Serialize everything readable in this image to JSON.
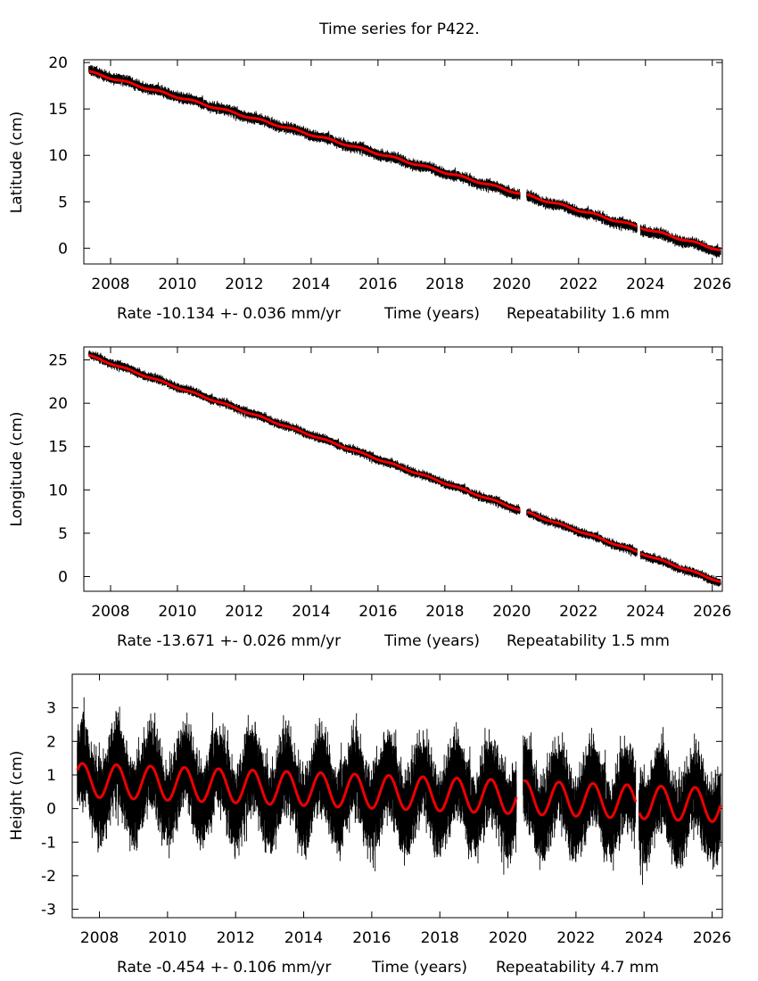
{
  "title": "Time series for P422.",
  "colors": {
    "data": "#000000",
    "fit": "#ee0000",
    "frame": "#000000"
  },
  "chart_data": [
    {
      "type": "scatter",
      "ylabel": "Latitude (cm)",
      "xlabel": "Time (years)",
      "rate_text": "Rate -10.134 +- 0.036 mm/yr",
      "repeat_text": "Repeatability 1.6 mm",
      "xlim": [
        2007.2,
        2026.3
      ],
      "ylim": [
        -1.7,
        20.3
      ],
      "xticks": [
        2008,
        2010,
        2012,
        2014,
        2016,
        2018,
        2020,
        2022,
        2024,
        2026
      ],
      "yticks": [
        0,
        5,
        10,
        15,
        20
      ],
      "series": [
        {
          "kind": "points",
          "x_start": 2007.35,
          "x_end": 2026.25,
          "y_start": 19.1,
          "y_end": -0.4,
          "gaps": [
            [
              2020.25,
              2020.45
            ],
            [
              2023.75,
              2023.85
            ]
          ],
          "scatter": 0.25,
          "annual_amplitude": 0.1
        },
        {
          "kind": "fit-line",
          "x_start": 2007.35,
          "x_end": 2026.25,
          "y_start": 19.0,
          "y_end": -0.2,
          "annual_amplitude": 0.1
        }
      ]
    },
    {
      "type": "scatter",
      "ylabel": "Longitude (cm)",
      "xlabel": "Time (years)",
      "rate_text": "Rate -13.671 +- 0.026 mm/yr",
      "repeat_text": "Repeatability 1.5 mm",
      "xlim": [
        2007.2,
        2026.3
      ],
      "ylim": [
        -1.7,
        26.5
      ],
      "xticks": [
        2008,
        2010,
        2012,
        2014,
        2016,
        2018,
        2020,
        2022,
        2024,
        2026
      ],
      "yticks": [
        0,
        5,
        10,
        15,
        20,
        25
      ],
      "series": [
        {
          "kind": "points",
          "x_start": 2007.35,
          "x_end": 2026.25,
          "y_start": 25.6,
          "y_end": -0.7,
          "gaps": [
            [
              2020.25,
              2020.45
            ],
            [
              2023.75,
              2023.85
            ]
          ],
          "scatter": 0.22,
          "annual_amplitude": 0.08
        },
        {
          "kind": "fit-line",
          "x_start": 2007.35,
          "x_end": 2026.25,
          "y_start": 25.5,
          "y_end": -0.6,
          "annual_amplitude": 0.08
        }
      ]
    },
    {
      "type": "scatter",
      "ylabel": "Height (cm)",
      "xlabel": "Time (years)",
      "rate_text": "Rate -0.454 +- 0.106 mm/yr",
      "repeat_text": "Repeatability 4.7 mm",
      "xlim": [
        2007.2,
        2026.3
      ],
      "ylim": [
        -3.25,
        4.0
      ],
      "xticks": [
        2008,
        2010,
        2012,
        2014,
        2016,
        2018,
        2020,
        2022,
        2024,
        2026
      ],
      "yticks": [
        -3,
        -2,
        -1,
        0,
        1,
        2,
        3
      ],
      "series": [
        {
          "kind": "points",
          "x_start": 2007.35,
          "x_end": 2026.25,
          "y_start": 0.85,
          "y_end": 0.1,
          "gaps": [
            [
              2020.25,
              2020.45
            ],
            [
              2023.75,
              2023.85
            ]
          ],
          "scatter": 0.55,
          "annual_amplitude": 0.6
        },
        {
          "kind": "fit-line",
          "x_start": 2007.35,
          "x_end": 2026.25,
          "y_start": 0.85,
          "y_end": 0.1,
          "annual_amplitude": 0.5,
          "peak_phase_year": 0.5
        }
      ]
    }
  ]
}
